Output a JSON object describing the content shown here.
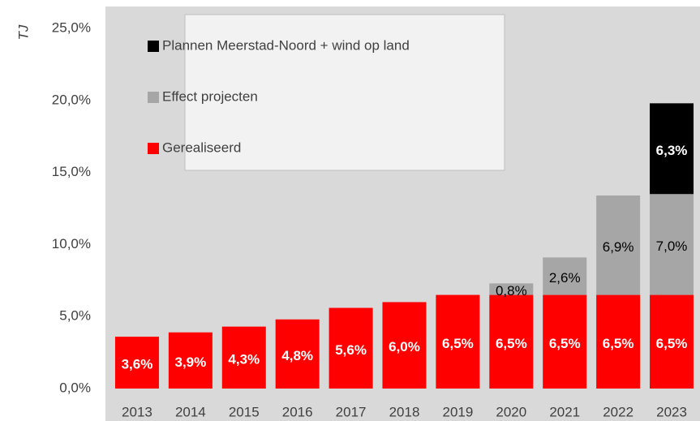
{
  "chart_data": {
    "type": "stacked_bar",
    "y_label": "TJ",
    "categories": [
      "2013",
      "2014",
      "2015",
      "2016",
      "2017",
      "2018",
      "2019",
      "2020",
      "2021",
      "2022",
      "2023"
    ],
    "series": [
      {
        "name": "Gerealiseerd",
        "color": "#ff0000",
        "label_color": "#ffffff",
        "label_bold": true,
        "values": [
          3.6,
          3.9,
          4.3,
          4.8,
          5.6,
          6.0,
          6.5,
          6.5,
          6.5,
          6.5,
          6.5
        ],
        "value_labels": [
          "3,6%",
          "3,9%",
          "4,3%",
          "4,8%",
          "5,6%",
          "6,0%",
          "6,5%",
          "6,5%",
          "6,5%",
          "6,5%",
          "6,5%"
        ]
      },
      {
        "name": "Effect projecten",
        "color": "#a6a6a6",
        "label_color": "#000000",
        "label_bold": false,
        "values": [
          null,
          null,
          null,
          null,
          null,
          null,
          null,
          0.8,
          2.6,
          6.9,
          7.0
        ],
        "value_labels": [
          null,
          null,
          null,
          null,
          null,
          null,
          null,
          "0,8%",
          "2,6%",
          "6,9%",
          "7,0%"
        ]
      },
      {
        "name": "Plannen Meerstad-Noord + wind op land",
        "color": "#000000",
        "label_color": "#ffffff",
        "label_bold": true,
        "values": [
          null,
          null,
          null,
          null,
          null,
          null,
          null,
          null,
          null,
          null,
          6.3
        ],
        "value_labels": [
          null,
          null,
          null,
          null,
          null,
          null,
          null,
          null,
          null,
          null,
          "6,3%"
        ]
      }
    ],
    "ylim": [
      0,
      25
    ],
    "yticks": [
      {
        "value": 0,
        "label": "0,0%"
      },
      {
        "value": 5,
        "label": "5,0%"
      },
      {
        "value": 10,
        "label": "10,0%"
      },
      {
        "value": 15,
        "label": "15,0%"
      },
      {
        "value": 20,
        "label": "20,0%"
      },
      {
        "value": 25,
        "label": "25,0%"
      }
    ],
    "legend": "upper left"
  }
}
